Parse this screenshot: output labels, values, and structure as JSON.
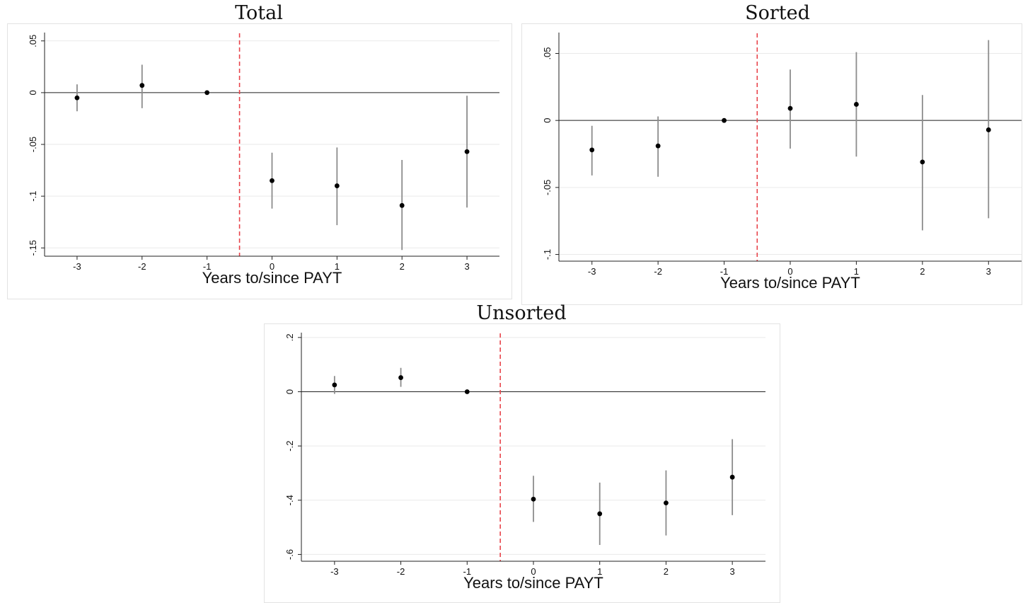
{
  "chart_data": [
    {
      "type": "scatter",
      "title": "Total",
      "xlabel": "Years to/since PAYT",
      "ylabel": "",
      "x": [
        -3,
        -2,
        -1,
        0,
        1,
        2,
        3
      ],
      "y": [
        -0.005,
        0.007,
        0.0,
        -0.085,
        -0.09,
        -0.109,
        -0.057
      ],
      "ci_low": [
        -0.018,
        -0.015,
        0.0,
        -0.112,
        -0.128,
        -0.152,
        -0.111
      ],
      "ci_high": [
        0.008,
        0.027,
        0.0,
        -0.058,
        -0.053,
        -0.065,
        -0.003
      ],
      "yticks": [
        0.05,
        0,
        -0.05,
        -0.1,
        -0.15
      ],
      "ytick_labels": [
        ".05",
        "0",
        "-.05",
        "-.1",
        "-.15"
      ],
      "xticks": [
        -3,
        -2,
        -1,
        0,
        1,
        2,
        3
      ],
      "xtick_labels": [
        "-3",
        "-2",
        "-1",
        "0",
        "1",
        "2",
        "3"
      ],
      "xlim": [
        -3.5,
        3.5
      ],
      "ylim": [
        -0.158,
        0.056
      ],
      "vline_x": -0.5,
      "hline_y": 0,
      "grid": true,
      "colors": {
        "marker": "#000000",
        "ci": "#8c8c8c",
        "vline": "#e8434a",
        "grid": "#eaeaea"
      }
    },
    {
      "type": "scatter",
      "title": "Sorted",
      "xlabel": "Years to/since PAYT",
      "ylabel": "",
      "x": [
        -3,
        -2,
        -1,
        0,
        1,
        2,
        3
      ],
      "y": [
        -0.022,
        -0.019,
        0.0,
        0.009,
        0.012,
        -0.031,
        -0.007
      ],
      "ci_low": [
        -0.041,
        -0.042,
        0.0,
        -0.021,
        -0.027,
        -0.082,
        -0.073
      ],
      "ci_high": [
        -0.004,
        0.003,
        0.0,
        0.038,
        0.051,
        0.019,
        0.06
      ],
      "yticks": [
        0.05,
        0,
        -0.05,
        -0.1
      ],
      "ytick_labels": [
        ".05",
        "0",
        "-.05",
        "-.1"
      ],
      "xticks": [
        -3,
        -2,
        -1,
        0,
        1,
        2,
        3
      ],
      "xtick_labels": [
        "-3",
        "-2",
        "-1",
        "0",
        "1",
        "2",
        "3"
      ],
      "xlim": [
        -3.5,
        3.5
      ],
      "ylim": [
        -0.105,
        0.064
      ],
      "vline_x": -0.5,
      "hline_y": 0,
      "grid": true,
      "colors": {
        "marker": "#000000",
        "ci": "#8c8c8c",
        "vline": "#e8434a",
        "grid": "#eaeaea"
      }
    },
    {
      "type": "scatter",
      "title": "Unsorted",
      "xlabel": "Years to/since PAYT",
      "ylabel": "",
      "x": [
        -3,
        -2,
        -1,
        0,
        1,
        2,
        3
      ],
      "y": [
        0.025,
        0.052,
        0.0,
        -0.396,
        -0.45,
        -0.41,
        -0.315
      ],
      "ci_low": [
        -0.008,
        0.018,
        0.0,
        -0.48,
        -0.565,
        -0.53,
        -0.455
      ],
      "ci_high": [
        0.058,
        0.088,
        0.0,
        -0.31,
        -0.335,
        -0.29,
        -0.175
      ],
      "yticks": [
        0.2,
        0,
        -0.2,
        -0.4,
        -0.6
      ],
      "ytick_labels": [
        ".2",
        "0",
        "-.2",
        "-.4",
        "-.6"
      ],
      "xticks": [
        -3,
        -2,
        -1,
        0,
        1,
        2,
        3
      ],
      "xtick_labels": [
        "-3",
        "-2",
        "-1",
        "0",
        "1",
        "2",
        "3"
      ],
      "xlim": [
        -3.5,
        3.5
      ],
      "ylim": [
        -0.625,
        0.21
      ],
      "vline_x": -0.5,
      "hline_y": 0,
      "grid": true,
      "colors": {
        "marker": "#000000",
        "ci": "#8c8c8c",
        "vline": "#e8434a",
        "grid": "#eaeaea"
      }
    }
  ]
}
